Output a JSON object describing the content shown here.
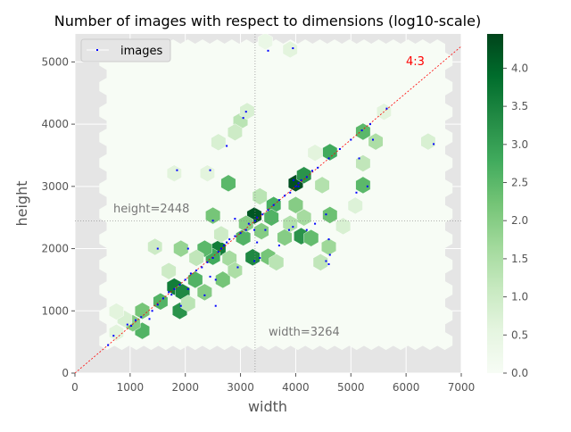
{
  "chart_data": {
    "type": "hexbin",
    "title": "Number of images with respect to dimensions (log10-scale)",
    "xlabel": "width",
    "ylabel": "height",
    "xlim": [
      0,
      7000
    ],
    "ylim": [
      0,
      5450
    ],
    "xticks": [
      0,
      1000,
      2000,
      3000,
      4000,
      5000,
      6000,
      7000
    ],
    "yticks": [
      0,
      1000,
      2000,
      3000,
      4000,
      5000
    ],
    "legend": {
      "label": "images",
      "placement": "top-left",
      "marker_color": "#0000ff"
    },
    "reference_lines": {
      "ratio": {
        "label": "4:3",
        "slope": 0.75,
        "color": "#ff0000"
      },
      "median_width": {
        "value": 3264,
        "label": "width=3264"
      },
      "median_height": {
        "value": 2448,
        "label": "height=2448"
      }
    },
    "colorbar": {
      "min": 0,
      "max": 4.45,
      "ticks": [
        0.0,
        0.5,
        1.0,
        1.5,
        2.0,
        2.5,
        3.0,
        3.5,
        4.0
      ],
      "tick_labels": [
        "0.0",
        "0.5",
        "1.0",
        "1.5",
        "2.0",
        "2.5",
        "3.0",
        "3.5",
        "4.0"
      ],
      "colormap": "Greens"
    },
    "hexbins": [
      [
        3250,
        2530,
        4.2
      ],
      [
        4000,
        3050,
        4.3
      ],
      [
        2600,
        2000,
        3.6
      ],
      [
        1800,
        1390,
        3.6
      ],
      [
        1950,
        1300,
        3.4
      ],
      [
        4150,
        3180,
        3.2
      ],
      [
        3220,
        1860,
        3.4
      ],
      [
        4100,
        2200,
        3.2
      ],
      [
        4620,
        3550,
        2.8
      ],
      [
        5220,
        3020,
        2.5
      ],
      [
        5220,
        3880,
        2.5
      ],
      [
        3600,
        2700,
        2.7
      ],
      [
        2780,
        3050,
        2.5
      ],
      [
        2500,
        1870,
        2.8
      ],
      [
        1900,
        1000,
        3.2
      ],
      [
        1220,
        680,
        2.6
      ],
      [
        1220,
        1000,
        2.2
      ],
      [
        1550,
        1150,
        2.6
      ],
      [
        2350,
        2000,
        2.5
      ],
      [
        2180,
        1500,
        2.6
      ],
      [
        3050,
        2180,
        2.6
      ],
      [
        3380,
        2280,
        2.0
      ],
      [
        2350,
        1300,
        2.0
      ],
      [
        2500,
        2530,
        2.2
      ],
      [
        4620,
        2540,
        2.3
      ],
      [
        4280,
        2170,
        2.4
      ],
      [
        2680,
        1500,
        2.2
      ],
      [
        3100,
        2400,
        2.0
      ],
      [
        3800,
        2180,
        2.0
      ],
      [
        1920,
        2000,
        1.8
      ],
      [
        3500,
        1870,
        2.2
      ],
      [
        4000,
        2700,
        2.0
      ],
      [
        4150,
        2500,
        1.6
      ],
      [
        4600,
        2030,
        1.7
      ],
      [
        5450,
        3720,
        1.5
      ],
      [
        3560,
        2500,
        2.6
      ],
      [
        5220,
        3370,
        1.2
      ],
      [
        4480,
        3020,
        1.4
      ],
      [
        1050,
        800,
        2.0
      ],
      [
        2800,
        1840,
        1.6
      ],
      [
        2900,
        1650,
        1.5
      ],
      [
        3650,
        1780,
        1.3
      ],
      [
        4450,
        1780,
        1.2
      ],
      [
        3000,
        4050,
        1.3
      ],
      [
        2900,
        3870,
        1.0
      ],
      [
        3120,
        4210,
        0.8
      ],
      [
        2600,
        3710,
        0.8
      ],
      [
        2400,
        3210,
        0.6
      ],
      [
        1800,
        3210,
        0.6
      ],
      [
        5600,
        4200,
        0.6
      ],
      [
        6400,
        3720,
        0.8
      ],
      [
        5080,
        2690,
        0.7
      ],
      [
        4860,
        2360,
        0.8
      ],
      [
        4350,
        3540,
        0.6
      ],
      [
        1700,
        1640,
        1.0
      ],
      [
        1450,
        2030,
        1.0
      ],
      [
        900,
        870,
        0.8
      ],
      [
        750,
        650,
        0.6
      ],
      [
        750,
        990,
        0.6
      ],
      [
        3900,
        5200,
        0.6
      ],
      [
        3450,
        5330,
        0.4
      ],
      [
        3350,
        2840,
        1.3
      ],
      [
        2650,
        2230,
        1.0
      ],
      [
        2200,
        1850,
        1.2
      ],
      [
        3900,
        2400,
        1.4
      ],
      [
        2050,
        1120,
        1.3
      ]
    ],
    "points": [
      [
        600,
        450
      ],
      [
        700,
        600
      ],
      [
        950,
        780
      ],
      [
        1020,
        760
      ],
      [
        1100,
        850
      ],
      [
        1200,
        900
      ],
      [
        1350,
        870
      ],
      [
        1400,
        1000
      ],
      [
        1500,
        1100
      ],
      [
        1600,
        1200
      ],
      [
        1700,
        1300
      ],
      [
        1750,
        1260
      ],
      [
        1800,
        1350
      ],
      [
        1900,
        1420
      ],
      [
        1920,
        1080
      ],
      [
        2000,
        1500
      ],
      [
        2050,
        1350
      ],
      [
        2100,
        1600
      ],
      [
        2200,
        1650
      ],
      [
        2300,
        1700
      ],
      [
        2400,
        1780
      ],
      [
        2500,
        1850
      ],
      [
        2550,
        1500
      ],
      [
        2600,
        1950
      ],
      [
        2650,
        2000
      ],
      [
        2700,
        2050
      ],
      [
        2750,
        2100
      ],
      [
        2800,
        2150
      ],
      [
        2900,
        2200
      ],
      [
        3000,
        2250
      ],
      [
        3100,
        2300
      ],
      [
        3150,
        2400
      ],
      [
        3264,
        2448
      ],
      [
        3300,
        2500
      ],
      [
        3400,
        2550
      ],
      [
        3500,
        2620
      ],
      [
        3600,
        2700
      ],
      [
        3700,
        2780
      ],
      [
        3800,
        2850
      ],
      [
        3900,
        2900
      ],
      [
        4000,
        3000
      ],
      [
        4050,
        3050
      ],
      [
        4100,
        3100
      ],
      [
        4200,
        3150
      ],
      [
        4300,
        3250
      ],
      [
        4400,
        3300
      ],
      [
        4600,
        3450
      ],
      [
        4800,
        3600
      ],
      [
        5000,
        3750
      ],
      [
        5200,
        3900
      ],
      [
        5350,
        4000
      ],
      [
        5650,
        4250
      ],
      [
        6500,
        3680
      ],
      [
        1500,
        2000
      ],
      [
        1850,
        3260
      ],
      [
        2450,
        3260
      ],
      [
        2750,
        3650
      ],
      [
        3050,
        4100
      ],
      [
        3100,
        4200
      ],
      [
        3500,
        5180
      ],
      [
        3950,
        5220
      ],
      [
        4550,
        1800
      ],
      [
        4600,
        1750
      ],
      [
        4550,
        2550
      ],
      [
        4600,
        2150
      ],
      [
        4620,
        1900
      ],
      [
        3250,
        1800
      ],
      [
        3350,
        1850
      ],
      [
        3300,
        2100
      ],
      [
        2950,
        1700
      ],
      [
        2450,
        1550
      ],
      [
        2550,
        1080
      ],
      [
        2350,
        1250
      ],
      [
        2050,
        2000
      ],
      [
        2900,
        2480
      ],
      [
        5100,
        2900
      ],
      [
        5150,
        3450
      ],
      [
        5300,
        3000
      ],
      [
        4350,
        2400
      ],
      [
        4200,
        2300
      ],
      [
        3950,
        2350
      ],
      [
        3700,
        2050
      ],
      [
        3450,
        2300
      ],
      [
        5400,
        3750
      ],
      [
        2500,
        2450
      ],
      [
        3880,
        2300
      ],
      [
        4050,
        3000
      ],
      [
        3960,
        3100
      ],
      [
        3250,
        2300
      ]
    ]
  }
}
